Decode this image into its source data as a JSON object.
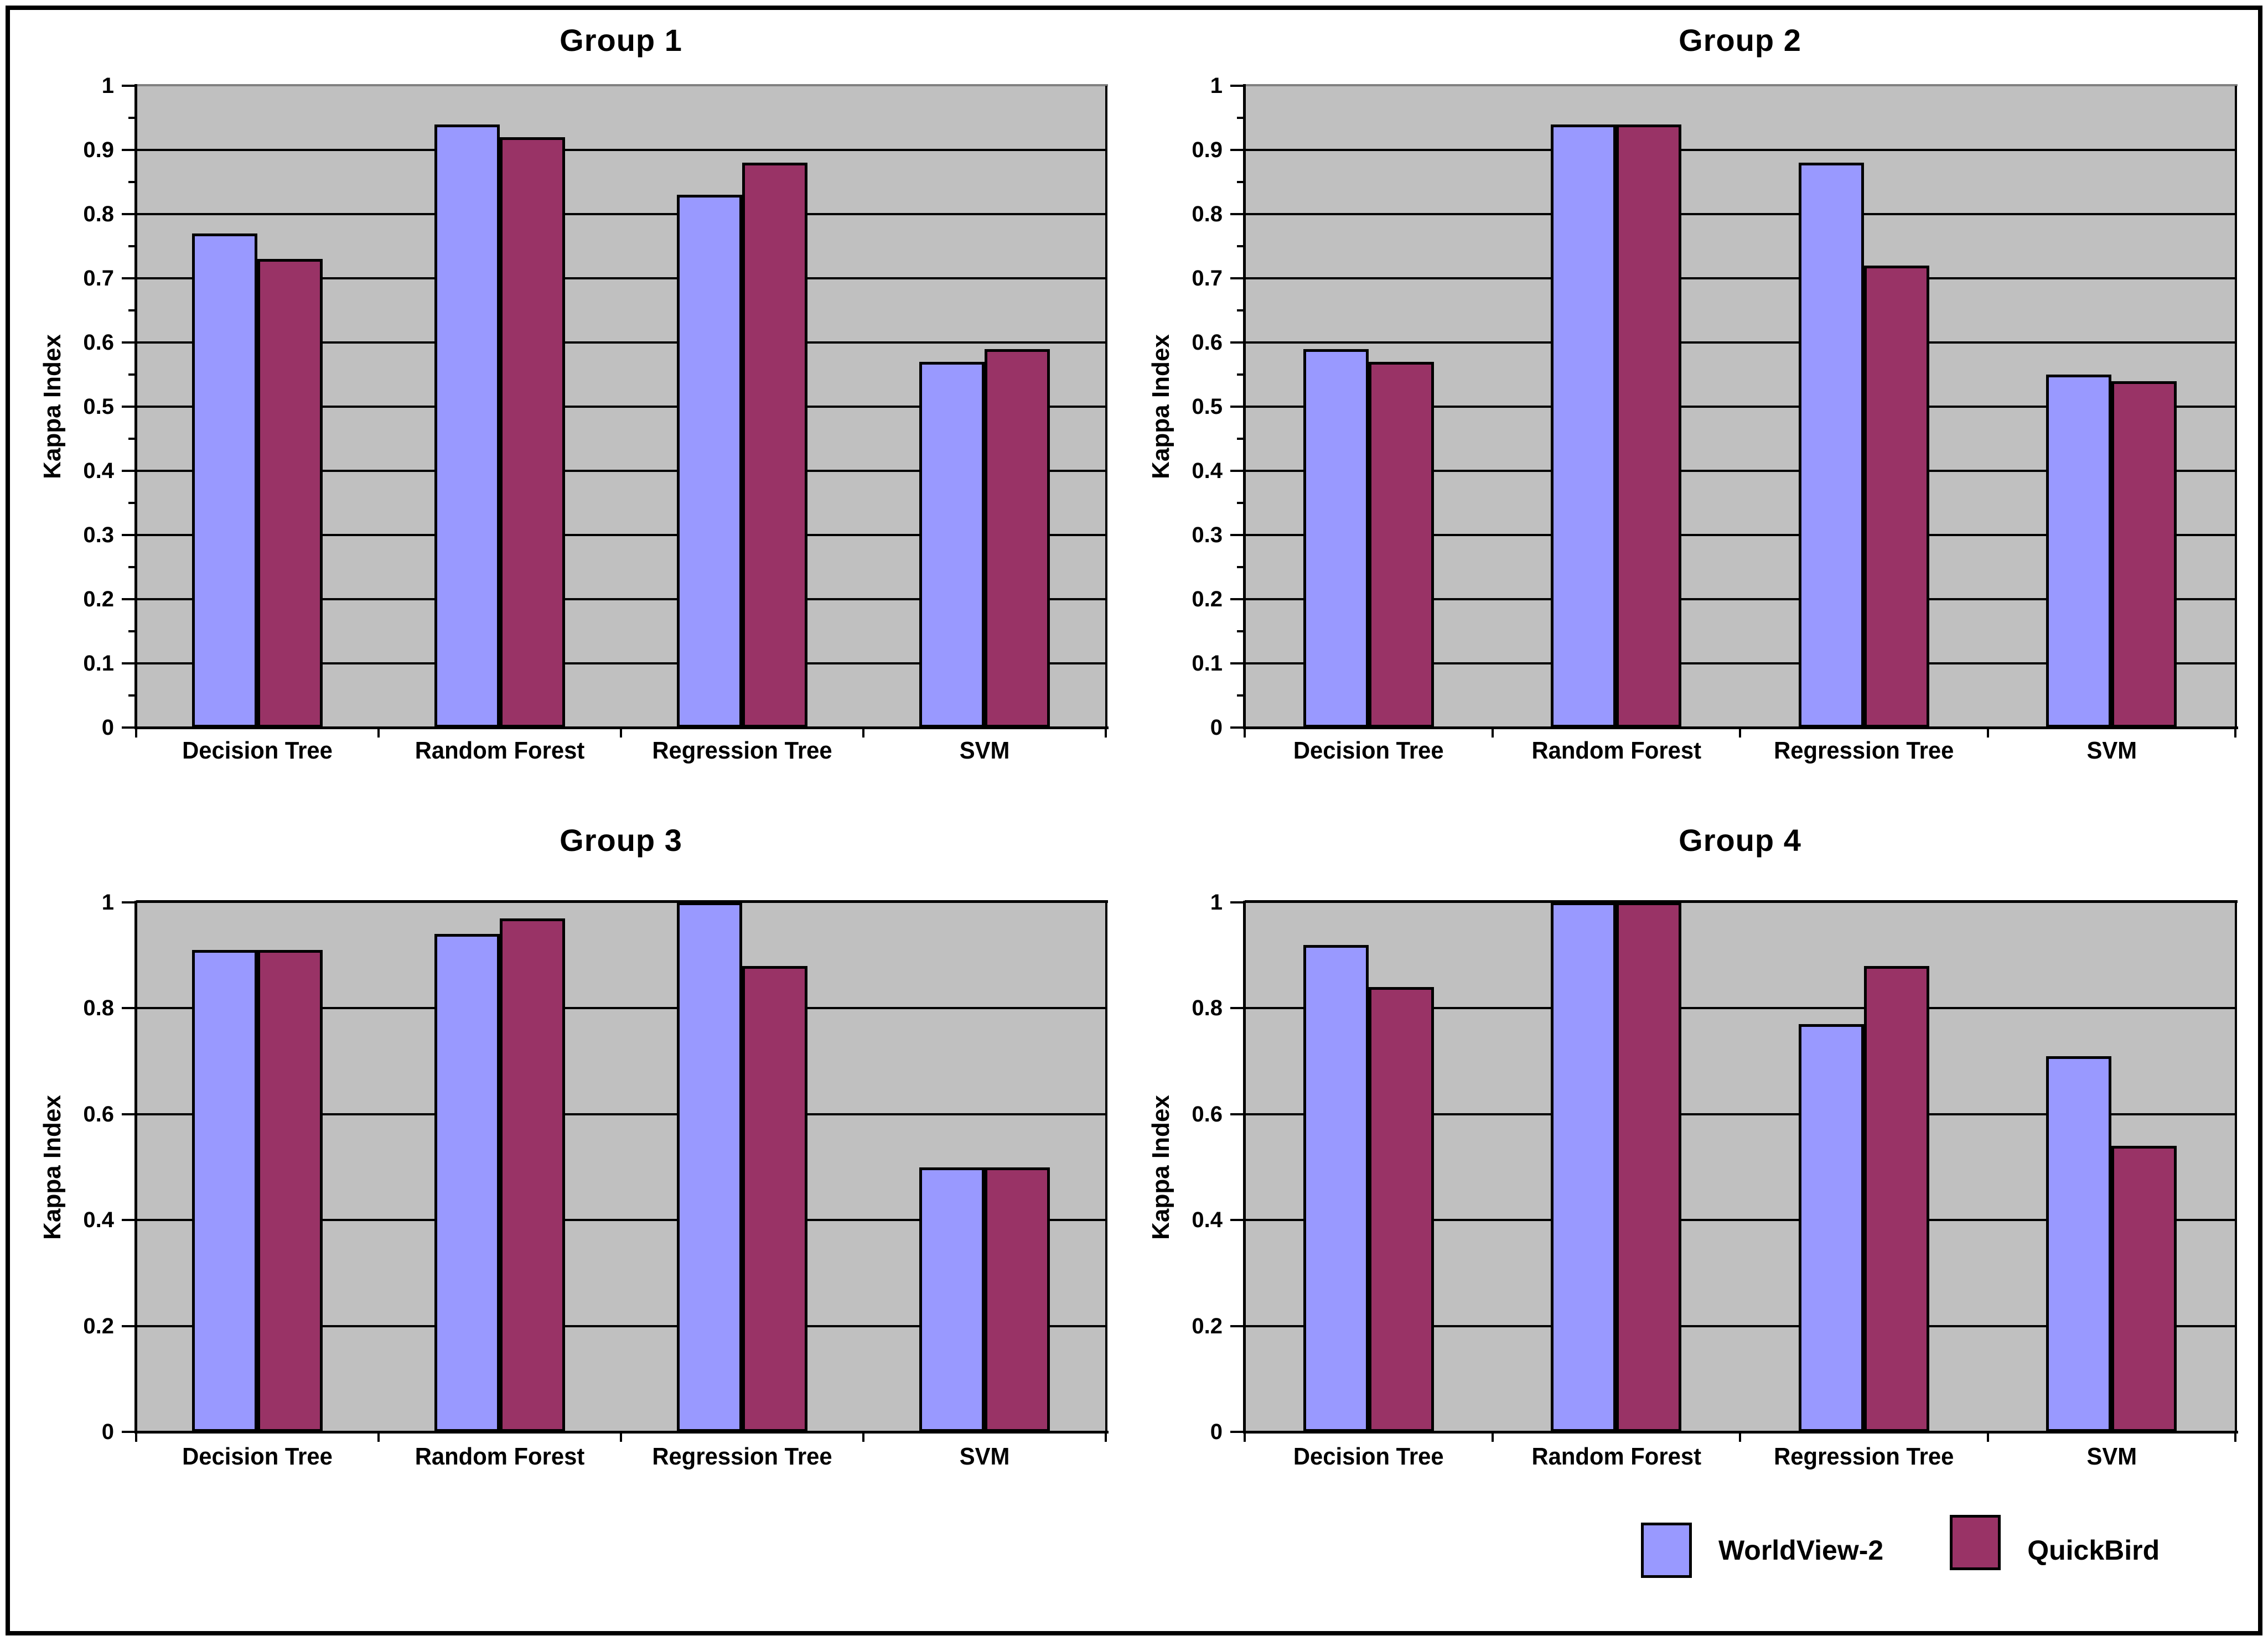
{
  "ylabel": "Kappa Index",
  "categories": [
    "Decision Tree",
    "Random Forest",
    "Regression Tree",
    "SVM"
  ],
  "legend": {
    "items": [
      {
        "label": "WorldView-2",
        "color": "#9999FF"
      },
      {
        "label": "QuickBird",
        "color": "#993366"
      }
    ]
  },
  "colors": {
    "worldview2": "#9999FF",
    "quickbird": "#993366",
    "plot_background": "#C0C0C0",
    "gridline": "#000000",
    "top_border_top_panels": "#808080",
    "top_border_bottom_panels": "#000000",
    "figure_border": "#000000"
  },
  "chart_data": [
    {
      "type": "bar",
      "title": "Group 1",
      "categories": [
        "Decision Tree",
        "Random Forest",
        "Regression Tree",
        "SVM"
      ],
      "series": [
        {
          "name": "WorldView-2",
          "color": "#9999FF",
          "values": [
            0.77,
            0.94,
            0.83,
            0.57
          ]
        },
        {
          "name": "QuickBird",
          "color": "#993366",
          "values": [
            0.73,
            0.92,
            0.88,
            0.59
          ]
        }
      ],
      "xlabel": "",
      "ylabel": "Kappa Index",
      "ylim": [
        0,
        1
      ],
      "ytick_step": 0.1,
      "y_tick_labels": [
        "0",
        "0.1",
        "0.2",
        "0.3",
        "0.4",
        "0.5",
        "0.6",
        "0.7",
        "0.8",
        "0.9",
        "1"
      ],
      "grid": true,
      "legend_position": "shared bottom-right"
    },
    {
      "type": "bar",
      "title": "Group 2",
      "categories": [
        "Decision Tree",
        "Random Forest",
        "Regression Tree",
        "SVM"
      ],
      "series": [
        {
          "name": "WorldView-2",
          "color": "#9999FF",
          "values": [
            0.59,
            0.94,
            0.88,
            0.55
          ]
        },
        {
          "name": "QuickBird",
          "color": "#993366",
          "values": [
            0.57,
            0.94,
            0.72,
            0.54
          ]
        }
      ],
      "xlabel": "",
      "ylabel": "Kappa Index",
      "ylim": [
        0,
        1
      ],
      "ytick_step": 0.1,
      "y_tick_labels": [
        "0",
        "0.1",
        "0.2",
        "0.3",
        "0.4",
        "0.5",
        "0.6",
        "0.7",
        "0.8",
        "0.9",
        "1"
      ],
      "grid": true,
      "legend_position": "shared bottom-right"
    },
    {
      "type": "bar",
      "title": "Group 3",
      "categories": [
        "Decision Tree",
        "Random Forest",
        "Regression Tree",
        "SVM"
      ],
      "series": [
        {
          "name": "WorldView-2",
          "color": "#9999FF",
          "values": [
            0.91,
            0.94,
            1.0,
            0.5
          ]
        },
        {
          "name": "QuickBird",
          "color": "#993366",
          "values": [
            0.91,
            0.97,
            0.88,
            0.5
          ]
        }
      ],
      "xlabel": "",
      "ylabel": "Kappa Index",
      "ylim": [
        0,
        1
      ],
      "ytick_step": 0.2,
      "y_tick_labels": [
        "0",
        "0.2",
        "0.4",
        "0.6",
        "0.8",
        "1"
      ],
      "grid": true,
      "legend_position": "shared bottom-right"
    },
    {
      "type": "bar",
      "title": "Group 4",
      "categories": [
        "Decision Tree",
        "Random Forest",
        "Regression Tree",
        "SVM"
      ],
      "series": [
        {
          "name": "WorldView-2",
          "color": "#9999FF",
          "values": [
            0.92,
            1.0,
            0.77,
            0.71
          ]
        },
        {
          "name": "QuickBird",
          "color": "#993366",
          "values": [
            0.84,
            1.0,
            0.88,
            0.54
          ]
        }
      ],
      "xlabel": "",
      "ylabel": "Kappa Index",
      "ylim": [
        0,
        1
      ],
      "ytick_step": 0.2,
      "y_tick_labels": [
        "0",
        "0.2",
        "0.4",
        "0.6",
        "0.8",
        "1"
      ],
      "grid": true,
      "legend_position": "shared bottom-right"
    }
  ]
}
